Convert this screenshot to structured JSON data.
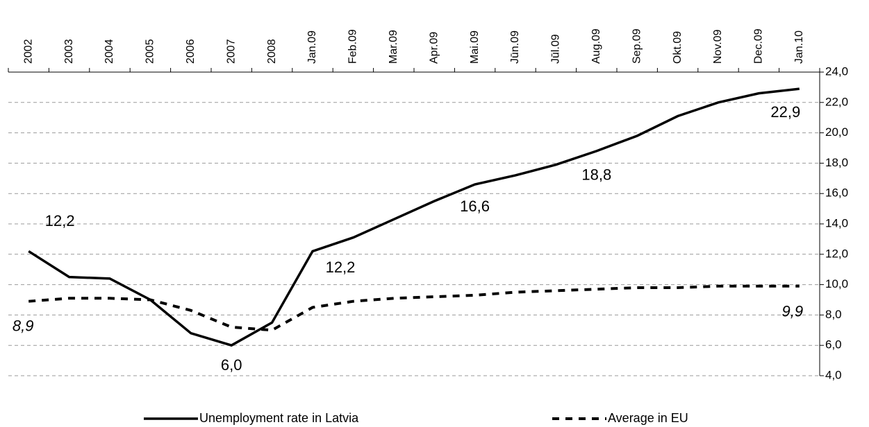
{
  "chart_data": {
    "type": "line",
    "categories": [
      "2002",
      "2003",
      "2004",
      "2005",
      "2006",
      "2007",
      "2008",
      "Jan.09",
      "Feb.09",
      "Mar.09",
      "Apr.09",
      "Mai.09",
      "Jūn.09",
      "Jūl.09",
      "Aug.09",
      "Sep.09",
      "Okt.09",
      "Nov.09",
      "Dec.09",
      "Jan.10"
    ],
    "series": [
      {
        "name": "Unemployment rate in Latvia",
        "color": "#000000",
        "dash": false,
        "values": [
          12.2,
          10.5,
          10.4,
          9.0,
          6.8,
          6.0,
          7.5,
          12.2,
          13.1,
          14.3,
          15.5,
          16.6,
          17.2,
          17.9,
          18.8,
          19.8,
          21.1,
          22.0,
          22.6,
          22.9
        ],
        "value_labels": [
          "12,2",
          null,
          null,
          null,
          null,
          "6,0",
          null,
          "12,2",
          null,
          null,
          null,
          "16,6",
          null,
          null,
          "18,8",
          null,
          null,
          null,
          null,
          "22,9"
        ]
      },
      {
        "name": "Average in EU",
        "color": "#000000",
        "dash": true,
        "values": [
          8.9,
          9.1,
          9.1,
          9.0,
          8.3,
          7.2,
          7.0,
          8.5,
          8.9,
          9.1,
          9.2,
          9.3,
          9.5,
          9.6,
          9.7,
          9.8,
          9.8,
          9.9,
          9.9,
          9.9
        ],
        "value_labels": [
          "8,9",
          null,
          null,
          null,
          null,
          null,
          null,
          null,
          null,
          null,
          null,
          null,
          null,
          null,
          null,
          null,
          null,
          null,
          null,
          "9,9"
        ]
      }
    ],
    "ylim": [
      4,
      24
    ],
    "yticks": [
      {
        "value": 4,
        "label": "4,0"
      },
      {
        "value": 6,
        "label": "6,0"
      },
      {
        "value": 8,
        "label": "8,0"
      },
      {
        "value": 10,
        "label": "10,0"
      },
      {
        "value": 12,
        "label": "12,0"
      },
      {
        "value": 14,
        "label": "14,0"
      },
      {
        "value": 16,
        "label": "16,0"
      },
      {
        "value": 18,
        "label": "18,0"
      },
      {
        "value": 20,
        "label": "20,0"
      },
      {
        "value": 22,
        "label": "22,0"
      },
      {
        "value": 24,
        "label": "24,0"
      }
    ],
    "grid": true
  }
}
